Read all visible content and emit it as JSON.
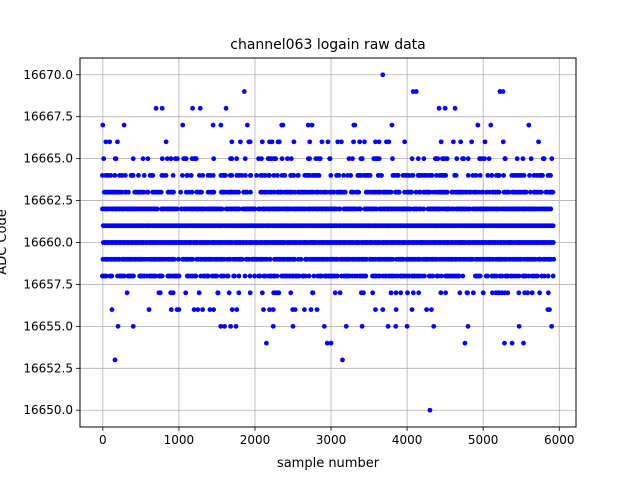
{
  "chart_data": {
    "type": "scatter",
    "title": "channel063 logain raw data",
    "xlabel": "sample number",
    "ylabel": "ADC Code",
    "xlim": [
      -300,
      6220
    ],
    "ylim": [
      16649.0,
      16671.0
    ],
    "xticks": [
      0,
      1000,
      2000,
      3000,
      4000,
      5000,
      6000
    ],
    "xtick_labels": [
      "0",
      "1000",
      "2000",
      "3000",
      "4000",
      "5000",
      "6000"
    ],
    "yticks": [
      16650.0,
      16652.5,
      16655.0,
      16657.5,
      16660.0,
      16662.5,
      16665.0,
      16667.5,
      16670.0
    ],
    "ytick_labels": [
      "16650.0",
      "16652.5",
      "16655.0",
      "16657.5",
      "16660.0",
      "16662.5",
      "16665.0",
      "16667.5",
      "16670.0"
    ],
    "grid": true,
    "marker_color": "#0000ff",
    "x_range_samples": [
      0,
      5930
    ],
    "dense_levels": [
      16657,
      16658,
      16659,
      16660,
      16661,
      16662,
      16663,
      16664,
      16665
    ],
    "dense_level_density": [
      0.15,
      0.55,
      0.85,
      1.0,
      1.0,
      0.85,
      0.6,
      0.4,
      0.18
    ],
    "sparse_points": [
      [
        0,
        16667
      ],
      [
        40,
        16666
      ],
      [
        90,
        16666
      ],
      [
        120,
        16656
      ],
      [
        200,
        16655
      ],
      [
        280,
        16667
      ],
      [
        160,
        16653
      ],
      [
        700,
        16668
      ],
      [
        780,
        16668
      ],
      [
        1050,
        16667
      ],
      [
        1180,
        16668
      ],
      [
        1280,
        16668
      ],
      [
        1450,
        16667
      ],
      [
        1620,
        16668
      ],
      [
        1860,
        16669
      ],
      [
        1900,
        16667
      ],
      [
        2150,
        16654
      ],
      [
        2500,
        16655
      ],
      [
        2700,
        16667
      ],
      [
        2750,
        16667
      ],
      [
        3000,
        16654
      ],
      [
        2950,
        16654
      ],
      [
        3150,
        16653
      ],
      [
        3200,
        16655
      ],
      [
        3300,
        16667
      ],
      [
        3680,
        16670
      ],
      [
        3800,
        16667
      ],
      [
        4080,
        16669
      ],
      [
        4120,
        16669
      ],
      [
        4300,
        16650
      ],
      [
        4350,
        16655
      ],
      [
        4420,
        16668
      ],
      [
        4500,
        16668
      ],
      [
        4630,
        16668
      ],
      [
        4760,
        16654
      ],
      [
        4800,
        16655
      ],
      [
        4930,
        16667
      ],
      [
        5100,
        16667
      ],
      [
        5220,
        16669
      ],
      [
        5260,
        16669
      ],
      [
        5280,
        16654
      ],
      [
        5380,
        16654
      ],
      [
        5530,
        16654
      ],
      [
        5600,
        16667
      ],
      [
        5850,
        16656
      ],
      [
        5900,
        16655
      ],
      [
        3750,
        16655
      ],
      [
        3850,
        16655
      ],
      [
        4000,
        16655
      ],
      [
        2650,
        16656
      ],
      [
        1550,
        16655
      ],
      [
        1600,
        16655
      ],
      [
        1750,
        16655
      ],
      [
        1700,
        16656
      ],
      [
        900,
        16656
      ],
      [
        1000,
        16656
      ]
    ]
  }
}
